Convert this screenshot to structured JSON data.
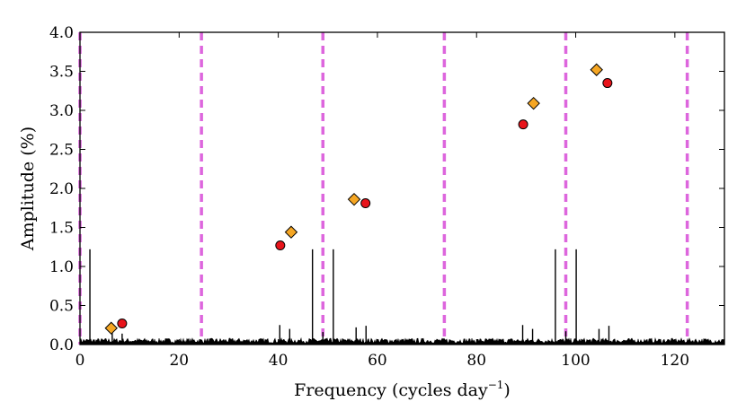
{
  "chart_data": {
    "type": "scatter",
    "title": "",
    "xlabel": "Frequency (cycles day",
    "xlabel_superscript": "−1",
    "xlabel_suffix": ")",
    "ylabel": "Amplitude (%)",
    "xlim": [
      0,
      130
    ],
    "ylim": [
      0,
      4.0
    ],
    "xticks": [
      0,
      20,
      40,
      60,
      80,
      100,
      120
    ],
    "xtick_labels": [
      "0",
      "20",
      "40",
      "60",
      "80",
      "100",
      "120"
    ],
    "yticks": [
      0.0,
      0.5,
      1.0,
      1.5,
      2.0,
      2.5,
      3.0,
      3.5,
      4.0
    ],
    "ytick_labels": [
      "0.0",
      "0.5",
      "1.0",
      "1.5",
      "2.0",
      "2.5",
      "3.0",
      "3.5",
      "4.0"
    ],
    "vertical_lines": {
      "style": "dashed",
      "color": "#dd66dd",
      "x": [
        0,
        24.5,
        49.0,
        73.5,
        98.0,
        122.5
      ]
    },
    "spectrum_peaks": {
      "color": "#000000",
      "noise_level": 0.07,
      "peaks": [
        {
          "x": 2.0,
          "y": 1.22
        },
        {
          "x": 46.9,
          "y": 1.22
        },
        {
          "x": 51.1,
          "y": 1.22
        },
        {
          "x": 95.9,
          "y": 1.22
        },
        {
          "x": 100.1,
          "y": 1.22
        },
        {
          "x": 40.3,
          "y": 0.25
        },
        {
          "x": 42.3,
          "y": 0.2
        },
        {
          "x": 55.7,
          "y": 0.22
        },
        {
          "x": 57.7,
          "y": 0.24
        },
        {
          "x": 89.3,
          "y": 0.25
        },
        {
          "x": 91.3,
          "y": 0.2
        },
        {
          "x": 104.7,
          "y": 0.2
        },
        {
          "x": 106.7,
          "y": 0.24
        },
        {
          "x": 49.0,
          "y": 0.16
        },
        {
          "x": 98.0,
          "y": 0.17
        },
        {
          "x": 6.5,
          "y": 0.15
        },
        {
          "x": 8.5,
          "y": 0.14
        }
      ]
    },
    "series": [
      {
        "name": "diamonds",
        "marker": "diamond",
        "color": "#f5a623",
        "points": [
          {
            "x": 6.3,
            "y": 0.21
          },
          {
            "x": 42.6,
            "y": 1.44
          },
          {
            "x": 55.3,
            "y": 1.86
          },
          {
            "x": 91.5,
            "y": 3.09
          },
          {
            "x": 104.2,
            "y": 3.52
          }
        ]
      },
      {
        "name": "circles",
        "marker": "circle",
        "color": "#e8141b",
        "points": [
          {
            "x": 8.5,
            "y": 0.27
          },
          {
            "x": 40.4,
            "y": 1.27
          },
          {
            "x": 57.6,
            "y": 1.81
          },
          {
            "x": 89.4,
            "y": 2.82
          },
          {
            "x": 106.4,
            "y": 3.35
          }
        ]
      }
    ]
  }
}
